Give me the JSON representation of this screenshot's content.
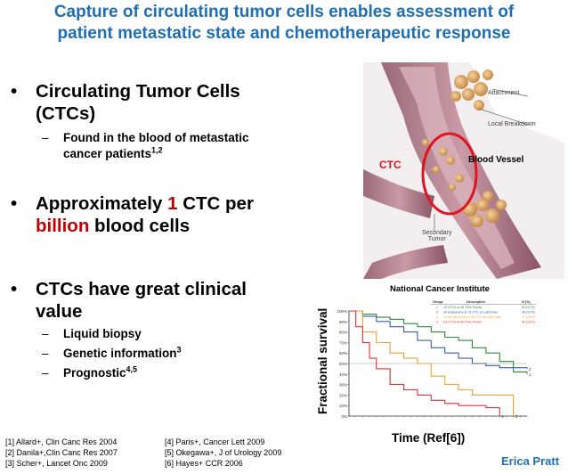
{
  "title": {
    "line1": "Capture of circulating tumor cells enables assessment of",
    "line2": "patient metastatic state and chemotherapeutic response"
  },
  "bullets": {
    "b1_line1": "Circulating Tumor Cells",
    "b1_line2": "(CTCs)",
    "b1_sub_line1": "Found in the blood of metastatic",
    "b1_sub_line2": "cancer patients",
    "b1_sub_sup": "1,2",
    "b2_line1_pre": "Approximately ",
    "b2_line1_red": "1",
    "b2_line1_post": " CTC per",
    "b2_line2_red": "billion",
    "b2_line2_post": " blood cells",
    "b3_line1": "CTCs have great clinical",
    "b3_line2": "value",
    "b3_sub1": "Liquid biopsy",
    "b3_sub2": "Genetic information",
    "b3_sub2_sup": "3",
    "b3_sub3": "Prognostic",
    "b3_sub3_sup": "4,5"
  },
  "illustration": {
    "label_attachment": "Attachment",
    "label_local_breakdown": "Local Breakdown",
    "label_blood_vessel": "Blood Vessel",
    "label_ctc": "CTC",
    "label_secondary_line1": "Secondary",
    "label_secondary_line2": "Tumor",
    "caption": "National Cancer Institute"
  },
  "chart": {
    "ylabel": "Fractional survival",
    "xlabel": "Time (Ref[6])"
  },
  "chart_data": {
    "type": "line",
    "ylabel": "Fractional survival",
    "xlabel": "Time (Ref[6])",
    "ytick_labels": [
      "100%",
      "90%",
      "80%",
      "70%",
      "60%",
      "50%",
      "40%",
      "30%",
      "20%",
      "10%",
      "0%"
    ],
    "ylim": [
      0,
      1
    ],
    "series": [
      {
        "name": "1",
        "color": "#2e8b3a",
        "x": [
          0,
          2,
          4,
          6,
          8,
          10,
          12,
          14,
          16,
          18,
          20,
          22,
          24,
          26
        ],
        "y": [
          1.0,
          0.97,
          0.94,
          0.92,
          0.88,
          0.85,
          0.8,
          0.75,
          0.72,
          0.65,
          0.6,
          0.52,
          0.42,
          0.4
        ]
      },
      {
        "name": "2",
        "color": "#3c5fa8",
        "x": [
          0,
          2,
          4,
          6,
          8,
          10,
          12,
          14,
          16,
          18,
          20,
          22,
          24,
          26
        ],
        "y": [
          1.0,
          0.95,
          0.9,
          0.85,
          0.8,
          0.72,
          0.65,
          0.6,
          0.55,
          0.5,
          0.48,
          0.46,
          0.46,
          0.45
        ]
      },
      {
        "name": "3",
        "color": "#f0a030",
        "x": [
          0,
          2,
          4,
          6,
          8,
          10,
          12,
          14,
          16,
          18,
          20,
          22,
          24
        ],
        "y": [
          1.0,
          0.8,
          0.7,
          0.6,
          0.55,
          0.5,
          0.38,
          0.3,
          0.25,
          0.2,
          0.2,
          0.2,
          0.0
        ]
      },
      {
        "name": "4",
        "color": "#e0303a",
        "x": [
          0,
          1,
          2,
          3,
          4,
          6,
          8,
          10,
          12,
          14,
          16,
          18,
          20,
          22
        ],
        "y": [
          1.0,
          0.85,
          0.7,
          0.55,
          0.45,
          0.3,
          0.25,
          0.2,
          0.15,
          0.12,
          0.1,
          0.1,
          0.08,
          0.0
        ]
      }
    ],
    "legend": {
      "headers": [
        "Group",
        "Description",
        "N (%)"
      ],
      "rows": [
        {
          "group": "1",
          "desc": "<5 CTCs at All Time Points",
          "n": "83 (47%)",
          "color": "#2e8b3a"
        },
        {
          "group": "2",
          "desc": "≥5 at Baseline & <5 CTC at Last Draw",
          "n": "38 (21%)",
          "color": "#3c5fa8"
        },
        {
          "group": "3",
          "desc": "<5 at Early Draw & ≥5 CTC at Last Draw",
          "n": "17 (10%)",
          "color": "#f0a030"
        },
        {
          "group": "4",
          "desc": "≥5 CTCs at All Time Points",
          "n": "39 (22%)",
          "color": "#e0303a"
        }
      ]
    },
    "grid": false
  },
  "references": {
    "r1": "[1] Allard+, Clin Canc Res  2004",
    "r2": "[2] Danila+,Clin Canc Res 2007",
    "r3": "[3] Scher+, Lancet Onc 2009",
    "r4": "[4] Paris+, Cancer Lett 2009",
    "r5": "[5] Okegawa+, J of Urology  2009",
    "r6": "[6] Hayes+ CCR 2006"
  },
  "author": "Erica Pratt"
}
